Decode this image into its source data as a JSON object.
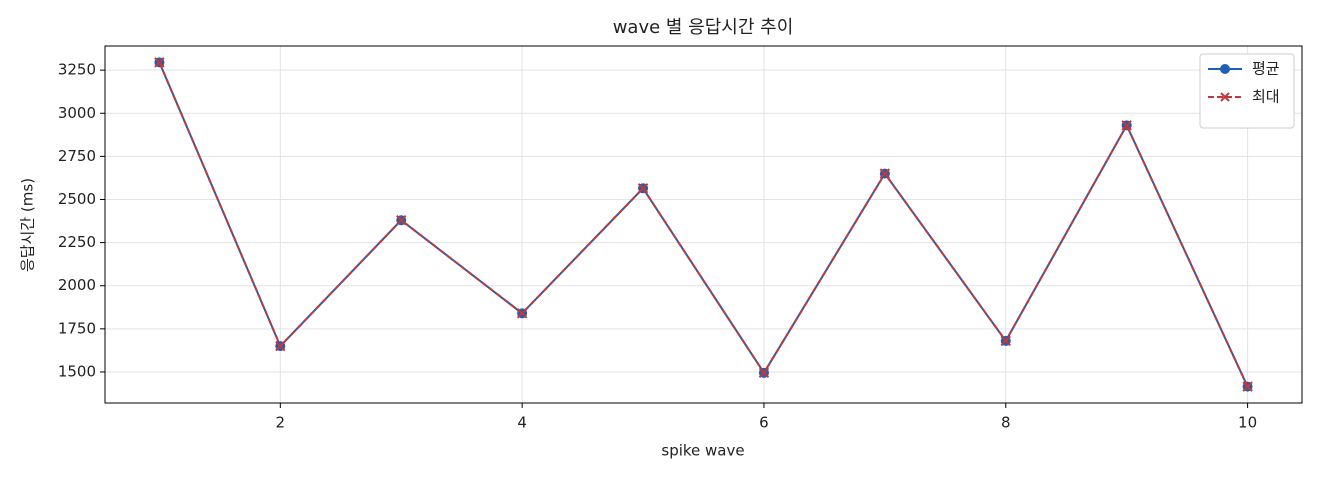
{
  "chart_data": {
    "type": "line",
    "title": "wave 별 응답시간 추이",
    "x_label": "spike wave",
    "y_label": "응답시간 (ms)",
    "x": [
      1,
      2,
      3,
      4,
      5,
      6,
      7,
      8,
      9,
      10
    ],
    "series": [
      {
        "name": "평균",
        "color": "#1f5fb4",
        "line_style": "solid",
        "marker": "circle",
        "values": [
          3295,
          1650,
          2380,
          1840,
          2565,
          1495,
          2650,
          1680,
          2930,
          1415
        ]
      },
      {
        "name": "최대",
        "color": "#c0393b",
        "line_style": "dashed",
        "marker": "x",
        "values": [
          3295,
          1650,
          2380,
          1840,
          2565,
          1495,
          2650,
          1680,
          2930,
          1415
        ]
      }
    ],
    "xlim": [
      0.55,
      10.45
    ],
    "ylim": [
      1320,
      3390
    ],
    "xticks": [
      2,
      4,
      6,
      8,
      10
    ],
    "yticks": [
      1500,
      1750,
      2000,
      2250,
      2500,
      2750,
      3000,
      3250
    ],
    "grid": true,
    "legend": "upper-right"
  }
}
